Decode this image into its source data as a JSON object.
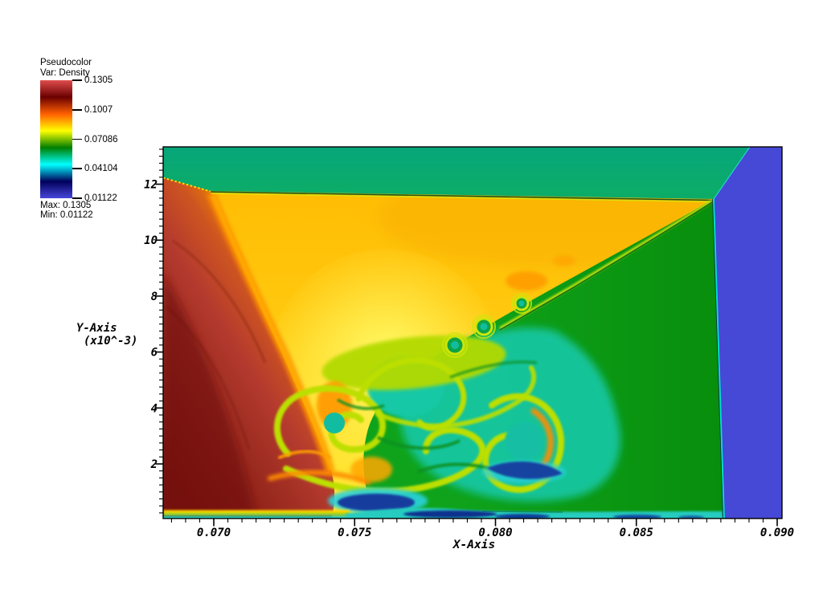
{
  "legend": {
    "title": "Pseudocolor",
    "var_label": "Var: Density",
    "tick_labels": [
      "0.1305",
      "0.1007",
      "0.07086",
      "0.04104",
      "0.01122"
    ],
    "max_label": "Max: 0.1305",
    "min_label": "Min: 0.01122",
    "colormap": {
      "name": "hot_desaturated",
      "stops_top_to_bottom": [
        "#E04C4C",
        "#6B0000",
        "#FF6000",
        "#FFFF00",
        "#007F00",
        "#00FFFF",
        "#00005B",
        "#4747DB"
      ]
    }
  },
  "axes": {
    "x": {
      "label": "X-Axis",
      "tick_labels": [
        "0.070",
        "0.075",
        "0.080",
        "0.085",
        "0.090"
      ],
      "tick_values": [
        0.07,
        0.075,
        0.08,
        0.085,
        0.09
      ],
      "minor_tick_step": 0.0005,
      "range_min": 0.0682,
      "range_max": 0.0902
    },
    "y": {
      "label": "Y-Axis",
      "scale_label": "(x10^-3)",
      "tick_labels": [
        "2",
        "4",
        "6",
        "8",
        "10",
        "12"
      ],
      "tick_values": [
        2,
        4,
        6,
        8,
        10,
        12
      ],
      "minor_tick_step": 0.25,
      "range_min": 0,
      "range_max": 13.3
    }
  },
  "chart_data": {
    "type": "heatmap",
    "plot_kind": "pseudocolor",
    "variable": "Density",
    "value_min": 0.01122,
    "value_max": 0.1305,
    "legend_tick_values": [
      0.1305,
      0.1007,
      0.07086,
      0.04104,
      0.01122
    ],
    "xlabel": "X-Axis",
    "ylabel": "Y-Axis (x10^-3)",
    "xlim": [
      0.0682,
      0.0902
    ],
    "ylim": [
      0,
      13.3
    ],
    "x_major_ticks": [
      0.07,
      0.075,
      0.08,
      0.085,
      0.09
    ],
    "y_major_ticks": [
      2,
      4,
      6,
      8,
      10,
      12
    ],
    "grid": false,
    "legend_position": "top-left",
    "colormap_top_to_bottom": [
      "#E04C4C",
      "#6B0000",
      "#FF6000",
      "#FFFF00",
      "#007F00",
      "#00FFFF",
      "#00005B",
      "#4747DB"
    ],
    "regions": [
      {
        "name": "top-band",
        "extent": "full width, y 11.5 to 13.3",
        "approx_density": 0.055,
        "color": "#0BA873"
      },
      {
        "name": "right-column",
        "extent": "x 0.0885 to 0.0902, full height",
        "approx_density": 0.0112,
        "color": "#4648D6"
      },
      {
        "name": "left-high-density-wedge",
        "extent": "x 0.068 to 0.0735, y 0 to 12.2",
        "approx_density": 0.125,
        "color": "#7D150E to #EE8400"
      },
      {
        "name": "central-amber-plateau",
        "extent": "between wedge and slip line",
        "approx_density": 0.09,
        "color": "#FFC30A"
      },
      {
        "name": "post-shock-green",
        "extent": "lower right triangle under slip line",
        "approx_density": 0.06,
        "color": "#0A9112"
      },
      {
        "name": "slip-line-kelvin-helmholtz",
        "extent": "from (0.0878, 11.4) down-left to (0.078, 6.2) with rollup vortices"
      },
      {
        "name": "vortex-mixing-zone",
        "extent": "x 0.0715 to 0.082, y 0.3 to 5",
        "approx_density": "0.03 to 0.09",
        "color": "teal, lime, orange swirls with navy pockets"
      },
      {
        "name": "bottom-boundary-layer",
        "extent": "thin strip along y=0",
        "approx_density": "0.02 to 0.04",
        "color": "cyan with dark navy blobs"
      }
    ]
  }
}
